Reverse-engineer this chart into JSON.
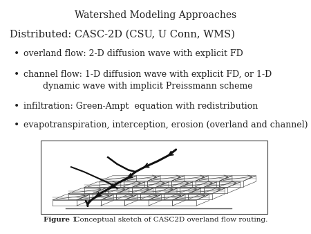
{
  "title": "Watershed Modeling Approaches",
  "subtitle": "Distributed: CASC-2D (CSU, U Conn, WMS)",
  "bullets": [
    "overland flow: 2-D diffusion wave with explicit FD",
    "channel flow: 1-D diffusion wave with explicit FD, or 1-D\n       dynamic wave with implicit Preissmann scheme",
    "infiltration: Green-Ampt  equation with redistribution",
    "evapotranspiration, interception, erosion (overland and channel)"
  ],
  "figure_caption_bold": "Figure 1",
  "figure_caption_rest": "  Conceptual sketch of CASC2D overland flow routing.",
  "bg_color": "#ffffff",
  "text_color": "#222222",
  "title_fontsize": 10,
  "subtitle_fontsize": 10.5,
  "bullet_fontsize": 9,
  "caption_fontsize": 7.5
}
